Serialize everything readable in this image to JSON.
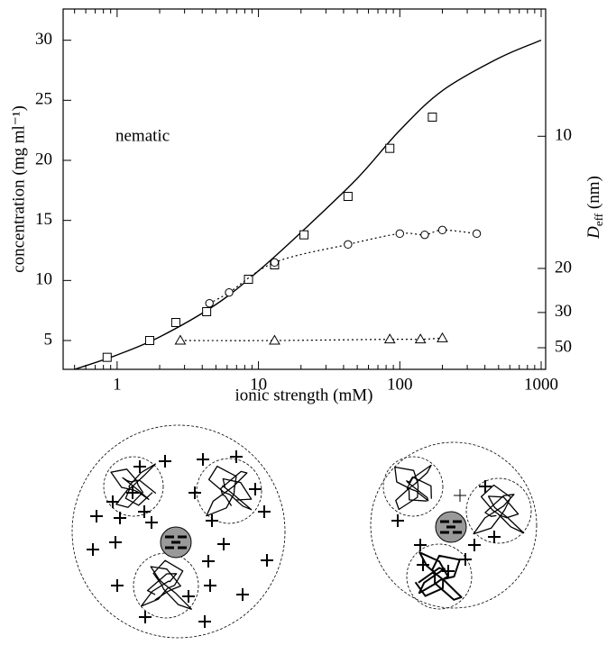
{
  "chart_data": {
    "type": "line",
    "xlabel": "ionic strength (mM)",
    "ylabel": "concentration (mg ml⁻¹)",
    "y2label": {
      "main": "D",
      "sub": "eff",
      "unit": " (nm)"
    },
    "annotation": "nematic",
    "xscale": "log",
    "xlim": [
      0.415,
      1076
    ],
    "xticks": [
      1,
      10,
      100,
      1000
    ],
    "ylim": [
      2.6,
      32.6
    ],
    "yticks": [
      5,
      10,
      15,
      20,
      25,
      30
    ],
    "y2scale": "reciprocal",
    "y2lim": [
      6.75,
      84.6
    ],
    "y2ticks": [
      10,
      20,
      30,
      50
    ],
    "series": [
      {
        "color": "#000000",
        "marker": "none",
        "style": "solid",
        "x": [
          0.5,
          1,
          2,
          5,
          10,
          20,
          50,
          100,
          200,
          500,
          1000
        ],
        "values": [
          2.6,
          3.8,
          5.3,
          8,
          10.8,
          14,
          18.5,
          22.5,
          25.8,
          28.5,
          30
        ]
      },
      {
        "color": "#000000",
        "marker": "square",
        "style": "none",
        "x": [
          0.85,
          1.7,
          2.6,
          4.3,
          8.5,
          13,
          21,
          43,
          85,
          170
        ],
        "values": [
          3.6,
          5,
          6.5,
          7.4,
          10.1,
          11.3,
          13.8,
          17,
          21,
          23.6
        ]
      },
      {
        "color": "#000000",
        "marker": "circle",
        "style": "dotted",
        "x": [
          4.5,
          6.2,
          13,
          43,
          100,
          150,
          200,
          350
        ],
        "values": [
          8.1,
          9,
          11.5,
          13,
          13.9,
          13.8,
          14.2,
          13.9
        ]
      },
      {
        "color": "#000000",
        "marker": "triangle",
        "style": "dotted",
        "x": [
          2.8,
          13,
          85,
          140,
          200
        ],
        "values": [
          5,
          5,
          5.1,
          5.1,
          5.2
        ]
      }
    ]
  }
}
